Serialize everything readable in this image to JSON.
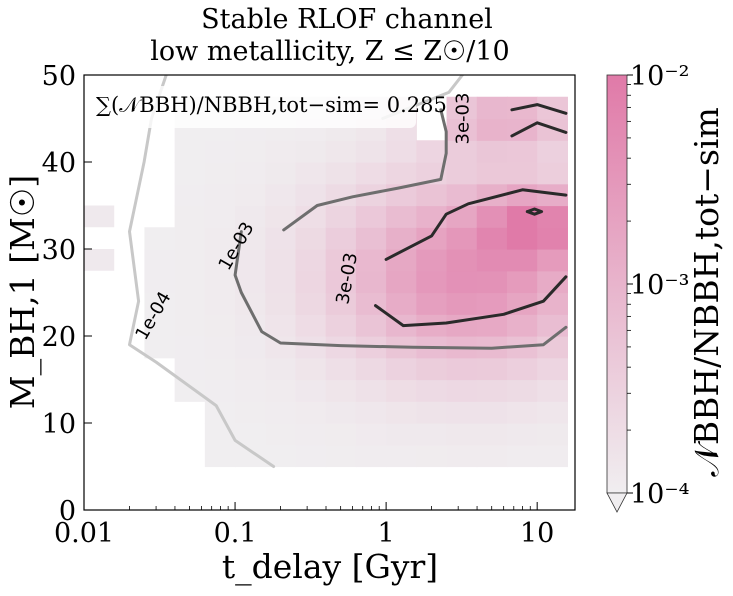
{
  "chart_data": {
    "type": "heatmap",
    "title_line1": "Stable RLOF channel",
    "title_line2": "low metallicity,  Z ≤ Z☉/10",
    "xlabel": "t_delay [Gyr]",
    "ylabel": "M_BH,1 [M☉]",
    "x_scale": "log",
    "xlim": [
      0.01,
      17.8
    ],
    "ylim": [
      0,
      50
    ],
    "x_ticks": [
      0.01,
      0.1,
      1,
      10
    ],
    "x_tick_labels": [
      "0.01",
      "0.1",
      "1",
      "10"
    ],
    "y_ticks": [
      0,
      10,
      20,
      30,
      40,
      50
    ],
    "y_tick_labels": [
      "0",
      "10",
      "20",
      "30",
      "40",
      "50"
    ],
    "annotation": "∑(𝒩BBH)/NBBH,tot−sim= 0.285",
    "colorbar": {
      "label": "𝒩BBH/NBBH,tot−sim",
      "scale": "log",
      "min": 0.0001,
      "max": 0.01,
      "tick_labels": [
        "10⁻²",
        "10⁻³",
        "10⁻⁴"
      ],
      "tick_values": [
        0.01,
        0.001,
        0.0001
      ],
      "color_low": "#f0eef0",
      "color_high": "#e07aa8",
      "extend": "min"
    },
    "grid": {
      "x_edges_log10": [
        -1.6,
        -1.4,
        -1.2,
        -1.0,
        -0.8,
        -0.6,
        -0.4,
        -0.2,
        0.0,
        0.2,
        0.4,
        0.6,
        0.8,
        1.0,
        1.2
      ],
      "y_edges": [
        5,
        7.5,
        10,
        12.5,
        15,
        17.5,
        20,
        22.5,
        25,
        27.5,
        30,
        32.5,
        35,
        37.5,
        40,
        42.5,
        45,
        47.5
      ]
    },
    "heatmap_values": [],
    "contours": [
      {
        "level": "1e-04",
        "color": "#c8c8c8",
        "label": "1e-04",
        "label_x": 0.031,
        "label_y": 22
      },
      {
        "level": "1e-03",
        "color": "#6e6e6e",
        "label": "1e-03",
        "label_x": 0.11,
        "label_y": 30
      },
      {
        "level": "3e-03",
        "color": "#2a2a2a",
        "label": "3e-03",
        "label_x": 0.6,
        "label_y": 26.5
      },
      {
        "level": "3e-03",
        "color": "#2a2a2a",
        "label": "3e-03",
        "label_x": 3.5,
        "label_y": 45
      }
    ]
  }
}
